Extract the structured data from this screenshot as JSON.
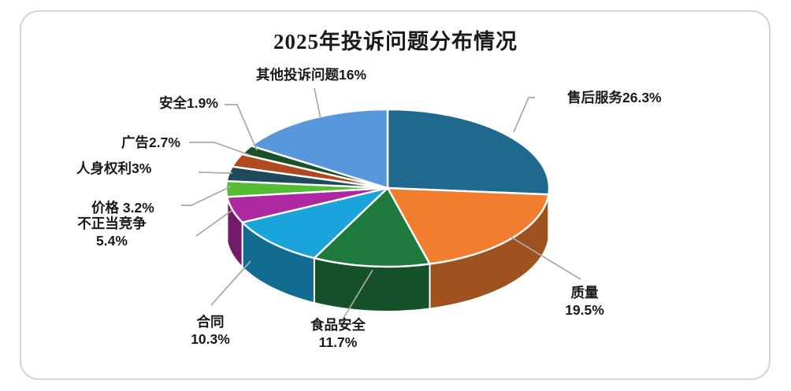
{
  "frame": {
    "background_color": "#FFFFFF",
    "border_color": "#D4D4D4",
    "leader_line_color": "#A8A8A8",
    "label_color": "#1A1A1A"
  },
  "chart_data": {
    "type": "pie",
    "is_3d": true,
    "title": "2025年投诉问题分布情况",
    "unit": "%",
    "start_angle_deg": 0,
    "direction": "clockwise",
    "legend_position": "none",
    "labels_style": "outside-with-leader-lines",
    "slices": [
      {
        "name": "售后服务",
        "value": 26.3,
        "label": "售后服务26.3%",
        "color": "#1F698F"
      },
      {
        "name": "质量",
        "value": 19.5,
        "label": "质量\n19.5%",
        "color": "#F07E2E"
      },
      {
        "name": "食品安全",
        "value": 11.7,
        "label": "食品安全\n11.7%",
        "color": "#1E7A3C"
      },
      {
        "name": "合同",
        "value": 10.3,
        "label": "合同\n10.3%",
        "color": "#1BA4DC"
      },
      {
        "name": "不正当竞争",
        "value": 5.4,
        "label": "不正当竞争\n5.4%",
        "color": "#AE28A2"
      },
      {
        "name": "价格",
        "value": 3.2,
        "label": "价格 3.2%",
        "color": "#54BC34"
      },
      {
        "name": "人身权利",
        "value": 3.0,
        "label": "人身权利3%",
        "color": "#1E4A5C"
      },
      {
        "name": "广告",
        "value": 2.7,
        "label": "广告2.7%",
        "color": "#B04A1E"
      },
      {
        "name": "安全",
        "value": 1.9,
        "label": "安全1.9%",
        "color": "#1B5128"
      },
      {
        "name": "其他投诉问题",
        "value": 16.0,
        "label": "其他投诉问题16%",
        "color": "#5897DB"
      }
    ]
  }
}
